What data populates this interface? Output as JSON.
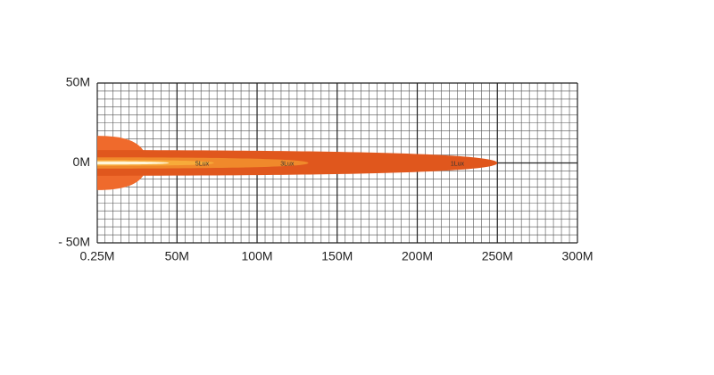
{
  "chart_data": {
    "type": "beam",
    "xlim": [
      0.25,
      300
    ],
    "ylim": [
      -50,
      50
    ],
    "xticks": [
      {
        "value": 0.25,
        "label": "0.25M"
      },
      {
        "value": 50,
        "label": "50M"
      },
      {
        "value": 100,
        "label": "100M"
      },
      {
        "value": 150,
        "label": "150M"
      },
      {
        "value": 200,
        "label": "200M"
      },
      {
        "value": 250,
        "label": "250M"
      },
      {
        "value": 300,
        "label": "300M"
      }
    ],
    "yticks": [
      {
        "value": -50,
        "label": "- 50M"
      },
      {
        "value": 0,
        "label": "0M"
      },
      {
        "value": 50,
        "label": "50M"
      }
    ],
    "minor_step": 5,
    "grid": true,
    "series": [
      {
        "color": "#ef6a2c",
        "reach": 31,
        "spread": 17
      },
      {
        "name": "1Lux",
        "color": "#e0571d",
        "reach": 250,
        "spread": 8
      },
      {
        "name": "3Lux",
        "color": "#f0892b",
        "reach": 132,
        "spread": 3.5
      },
      {
        "name": "5Lux",
        "color": "#f7ab3a",
        "reach": 73,
        "spread": 1.8
      },
      {
        "color": "#fff6d8",
        "reach": 45,
        "spread": 1
      }
    ]
  }
}
